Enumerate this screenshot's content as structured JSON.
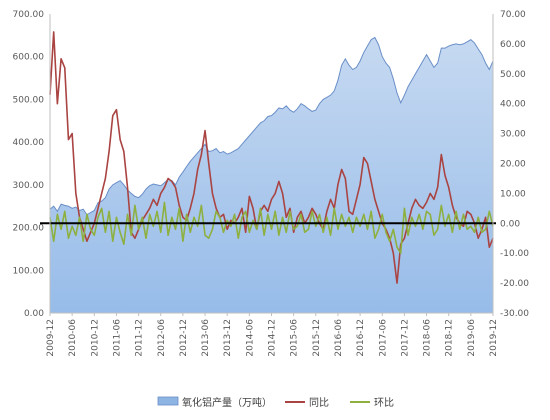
{
  "chart_data": {
    "type": "area+line",
    "x": [
      "2009-12",
      "2010-01",
      "2010-02",
      "2010-03",
      "2010-04",
      "2010-05",
      "2010-06",
      "2010-07",
      "2010-08",
      "2010-09",
      "2010-10",
      "2010-11",
      "2010-12",
      "2011-01",
      "2011-02",
      "2011-03",
      "2011-04",
      "2011-05",
      "2011-06",
      "2011-07",
      "2011-08",
      "2011-09",
      "2011-10",
      "2011-11",
      "2011-12",
      "2012-01",
      "2012-02",
      "2012-03",
      "2012-04",
      "2012-05",
      "2012-06",
      "2012-07",
      "2012-08",
      "2012-09",
      "2012-10",
      "2012-11",
      "2012-12",
      "2013-01",
      "2013-02",
      "2013-03",
      "2013-04",
      "2013-05",
      "2013-06",
      "2013-07",
      "2013-08",
      "2013-09",
      "2013-10",
      "2013-11",
      "2013-12",
      "2014-01",
      "2014-02",
      "2014-03",
      "2014-04",
      "2014-05",
      "2014-06",
      "2014-07",
      "2014-08",
      "2014-09",
      "2014-10",
      "2014-11",
      "2014-12",
      "2015-01",
      "2015-02",
      "2015-03",
      "2015-04",
      "2015-05",
      "2015-06",
      "2015-07",
      "2015-08",
      "2015-09",
      "2015-10",
      "2015-11",
      "2015-12",
      "2016-01",
      "2016-02",
      "2016-03",
      "2016-04",
      "2016-05",
      "2016-06",
      "2016-07",
      "2016-08",
      "2016-09",
      "2016-10",
      "2016-11",
      "2016-12",
      "2017-01",
      "2017-02",
      "2017-03",
      "2017-04",
      "2017-05",
      "2017-06",
      "2017-07",
      "2017-08",
      "2017-09",
      "2017-10",
      "2017-11",
      "2017-12",
      "2018-01",
      "2018-02",
      "2018-03",
      "2018-04",
      "2018-05",
      "2018-06",
      "2018-07",
      "2018-08",
      "2018-09",
      "2018-10",
      "2018-11",
      "2018-12",
      "2019-01",
      "2019-02",
      "2019-03",
      "2019-04",
      "2019-05",
      "2019-06",
      "2019-07",
      "2019-08",
      "2019-09",
      "2019-10",
      "2019-11",
      "2019-12"
    ],
    "x_tick_labels": [
      "2009-12",
      "2010-06",
      "2010-12",
      "2011-06",
      "2011-12",
      "2012-06",
      "2012-12",
      "2013-06",
      "2013-12",
      "2014-06",
      "2014-12",
      "2015-06",
      "2015-12",
      "2016-06",
      "2016-12",
      "2017-06",
      "2017-12",
      "2018-06",
      "2018-12",
      "2019-06",
      "2019-12"
    ],
    "y_left": {
      "min": 0,
      "max": 700,
      "step": 100,
      "tick_labels": [
        "0.00",
        "100.00",
        "200.00",
        "300.00",
        "400.00",
        "500.00",
        "600.00",
        "700.00"
      ]
    },
    "y_right": {
      "min": -30,
      "max": 70,
      "step": 10,
      "tick_labels": [
        "-30.00",
        "-20.00",
        "-10.00",
        "0.00",
        "10.00",
        "20.00",
        "30.00",
        "40.00",
        "50.00",
        "60.00",
        "70.00"
      ]
    },
    "series": [
      {
        "name": "氧化铝产量（万吨）",
        "type": "area",
        "axis": "left",
        "color": "#8EB4E3",
        "stroke": "#6A8FC8",
        "values": [
          243,
          250,
          238,
          255,
          252,
          250,
          245,
          248,
          240,
          243,
          230,
          235,
          240,
          258,
          262,
          270,
          290,
          300,
          305,
          310,
          300,
          288,
          280,
          273,
          270,
          278,
          290,
          298,
          302,
          300,
          298,
          305,
          313,
          310,
          300,
          318,
          330,
          343,
          355,
          365,
          375,
          385,
          395,
          378,
          380,
          385,
          375,
          378,
          372,
          375,
          380,
          385,
          395,
          405,
          415,
          425,
          435,
          445,
          450,
          460,
          462,
          470,
          480,
          478,
          485,
          475,
          470,
          478,
          490,
          485,
          478,
          472,
          475,
          490,
          500,
          505,
          510,
          520,
          545,
          580,
          595,
          580,
          570,
          575,
          590,
          610,
          625,
          640,
          645,
          628,
          600,
          585,
          575,
          548,
          515,
          492,
          510,
          530,
          545,
          560,
          575,
          590,
          605,
          590,
          575,
          585,
          620,
          620,
          625,
          628,
          630,
          628,
          630,
          635,
          640,
          632,
          618,
          605,
          585,
          570,
          590
        ]
      },
      {
        "name": "同比",
        "type": "line",
        "axis": "right",
        "color": "#A94442",
        "values": [
          43,
          64,
          40,
          55,
          52,
          28,
          30,
          10,
          2,
          -2,
          -6,
          -3,
          0,
          5,
          10,
          15,
          24,
          36,
          38,
          28,
          24,
          12,
          -3,
          -5,
          -2,
          1,
          3,
          5,
          8,
          6,
          10,
          12,
          15,
          14,
          12,
          6,
          2,
          1,
          5,
          10,
          18,
          23,
          31,
          20,
          10,
          5,
          2,
          3,
          -2,
          1,
          0,
          2,
          5,
          -3,
          9,
          5,
          -2,
          4,
          6,
          4,
          8,
          10,
          14,
          10,
          2,
          5,
          -3,
          2,
          4,
          0,
          2,
          5,
          3,
          0,
          -2,
          4,
          8,
          5,
          13,
          18,
          15,
          4,
          3,
          8,
          13,
          22,
          20,
          14,
          8,
          4,
          0,
          -2,
          -5,
          -10,
          -20,
          -7,
          -5,
          0,
          5,
          8,
          6,
          5,
          7,
          10,
          8,
          12,
          23,
          16,
          12,
          6,
          2,
          0,
          -1,
          4,
          3,
          0,
          -5,
          -2,
          2,
          -8,
          -5
        ]
      },
      {
        "name": "环比",
        "type": "line",
        "axis": "right",
        "color": "#8DB040",
        "values": [
          2,
          -6,
          3,
          -2,
          4,
          -5,
          -1,
          -4,
          2,
          -6,
          3,
          -2,
          -4,
          2,
          5,
          -3,
          4,
          -6,
          2,
          -3,
          -7,
          3,
          -4,
          6,
          -2,
          2,
          -5,
          3,
          -1,
          4,
          -3,
          7,
          -4,
          2,
          -2,
          5,
          -6,
          3,
          -3,
          2,
          -1,
          6,
          -4,
          -5,
          -2,
          4,
          2,
          -3,
          1,
          -1,
          3,
          -5,
          2,
          4,
          -3,
          1,
          -2,
          5,
          -4,
          3,
          -2,
          4,
          -4,
          2,
          -3,
          4,
          -2,
          -1,
          3,
          -3,
          -2,
          4,
          -1,
          3,
          -3,
          2,
          -4,
          5,
          -2,
          3,
          -1,
          2,
          -3,
          2,
          -1,
          3,
          -2,
          4,
          -5,
          -2,
          3,
          -3,
          -6,
          -2,
          -8,
          -10,
          5,
          -4,
          2,
          -1,
          3,
          -2,
          4,
          3,
          -4,
          -2,
          6,
          -1,
          3,
          -3,
          4,
          -2,
          3,
          -2,
          -1,
          -3,
          2,
          -3,
          -2,
          4,
          -1
        ]
      }
    ],
    "legend": {
      "position": "bottom",
      "items": [
        {
          "label": "氧化铝产量（万吨）",
          "swatch": "area",
          "color": "#8EB4E3"
        },
        {
          "label": "同比",
          "swatch": "line",
          "color": "#A94442"
        },
        {
          "label": "环比",
          "swatch": "line",
          "color": "#8DB040"
        }
      ]
    },
    "zero_line_color": "#000000",
    "grid": false
  }
}
